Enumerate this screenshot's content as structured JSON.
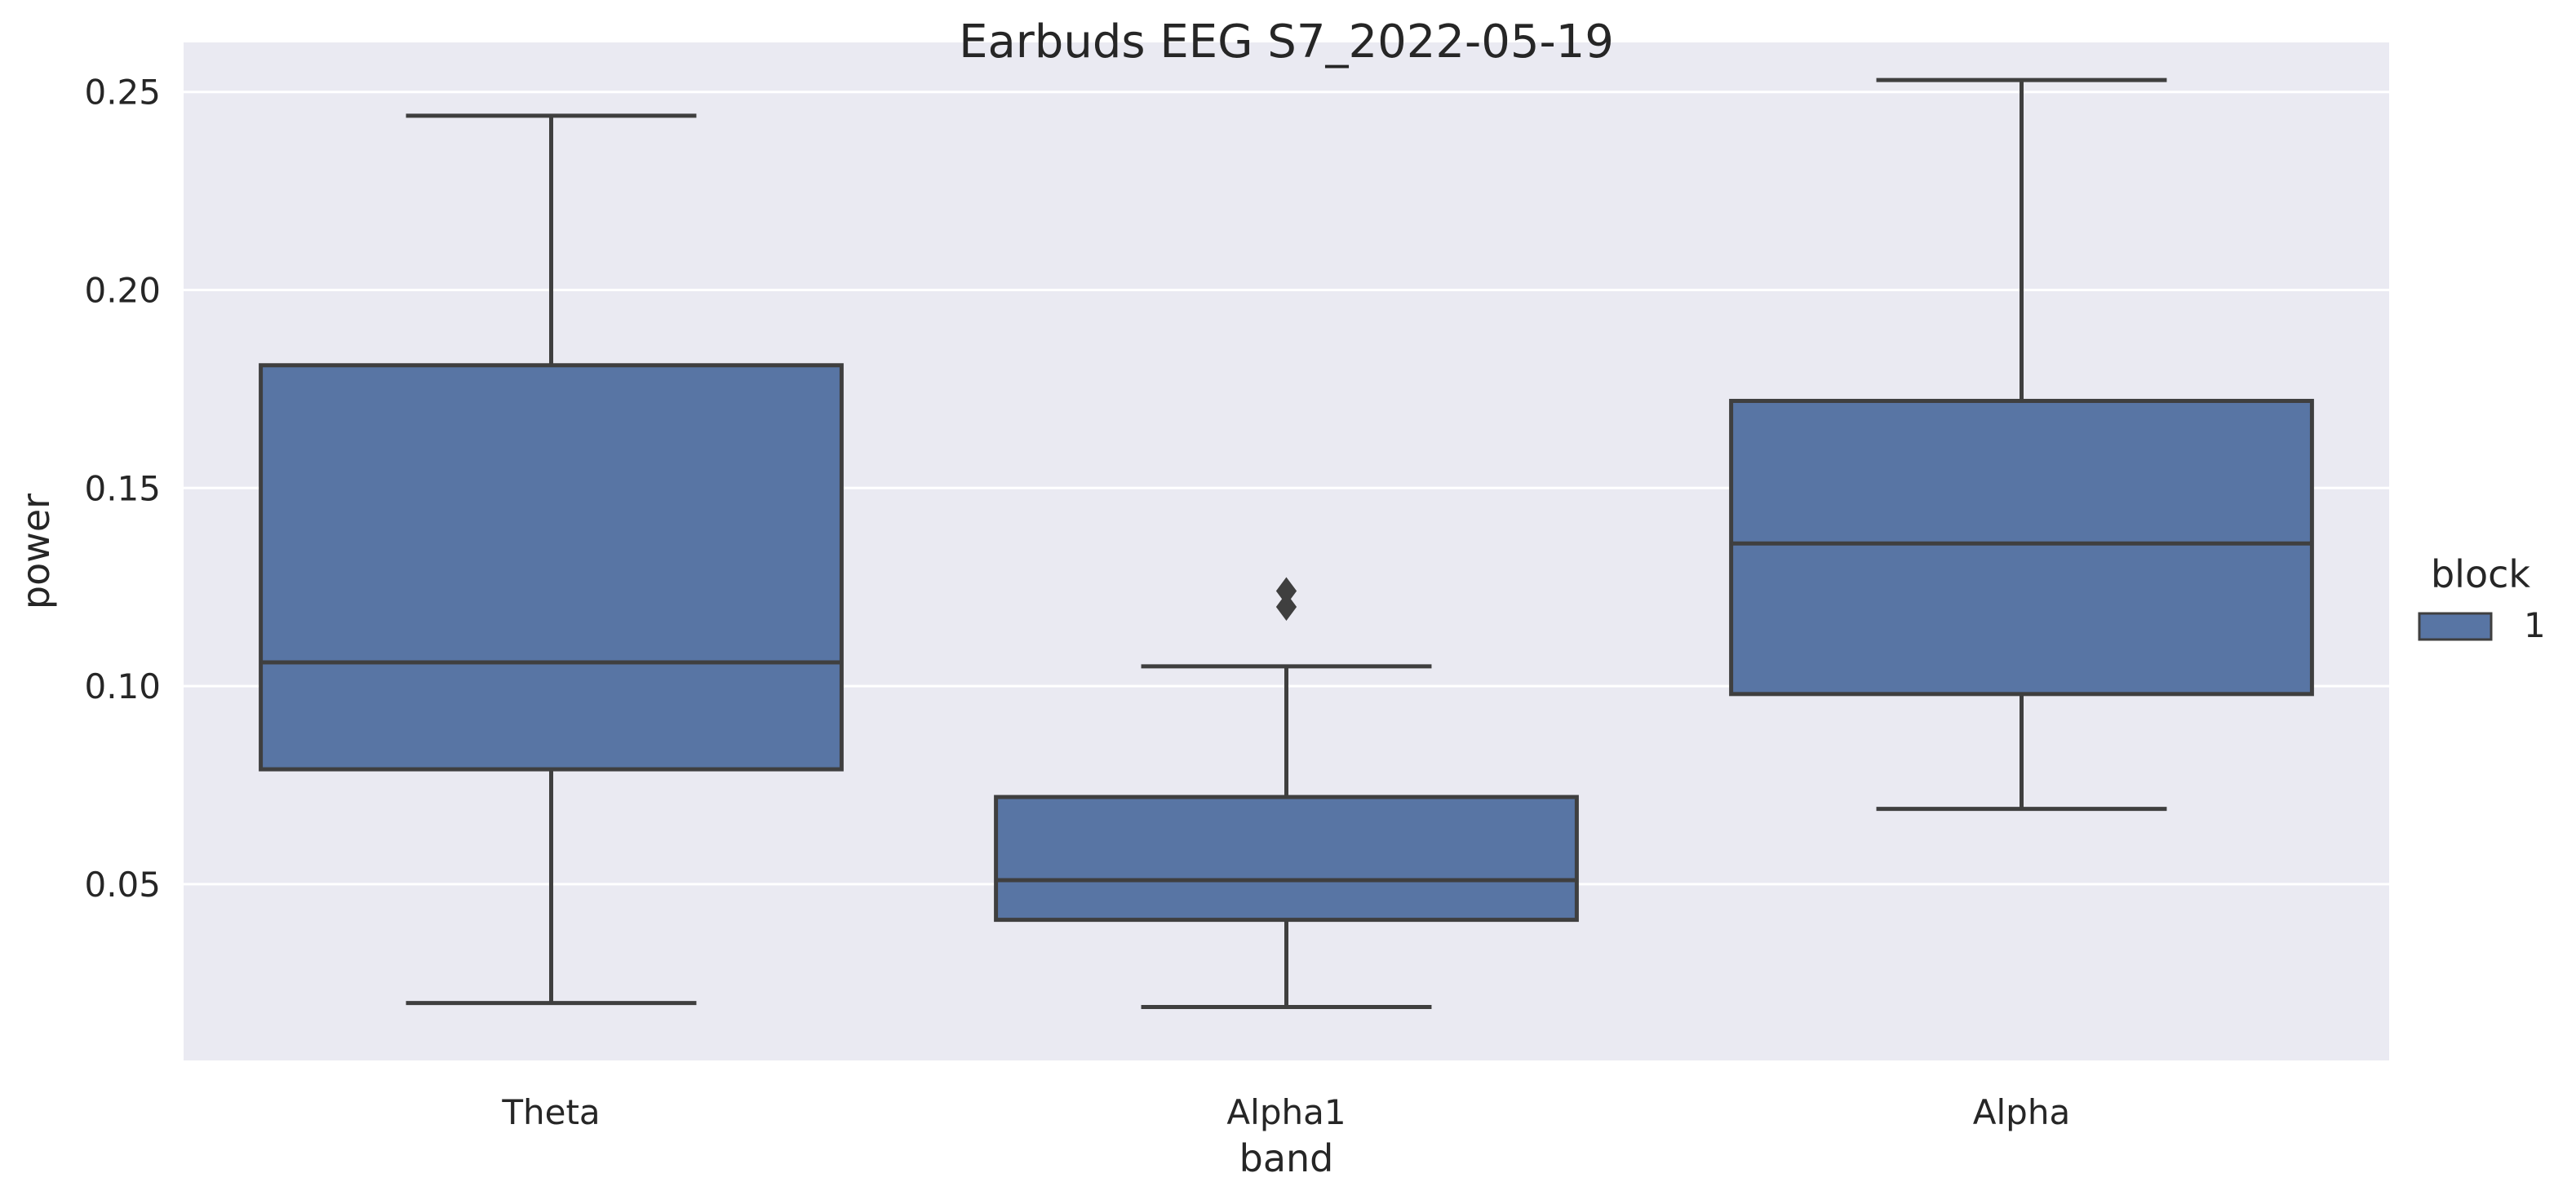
{
  "chart_data": {
    "type": "box",
    "title": "Earbuds EEG S7_2022-05-19",
    "xlabel": "band",
    "ylabel": "power",
    "ylim": [
      0.0055,
      0.2625
    ],
    "yticks": [
      0.05,
      0.1,
      0.15,
      0.2,
      0.25
    ],
    "ytick_labels": [
      "0.05",
      "0.10",
      "0.15",
      "0.20",
      "0.25"
    ],
    "grid": true,
    "legend": {
      "title": "block",
      "placement": "right",
      "entries": [
        {
          "label": "1",
          "color": "#5875a4"
        }
      ]
    },
    "categories": [
      "Theta",
      "Alpha1",
      "Alpha"
    ],
    "series": [
      {
        "name": "1",
        "boxes": [
          {
            "category": "Theta",
            "whislo": 0.02,
            "q1": 0.079,
            "med": 0.106,
            "q3": 0.181,
            "whishi": 0.244,
            "fliers": []
          },
          {
            "category": "Alpha1",
            "whislo": 0.019,
            "q1": 0.041,
            "med": 0.051,
            "q3": 0.072,
            "whishi": 0.105,
            "fliers": [
              0.12,
              0.124
            ]
          },
          {
            "category": "Alpha",
            "whislo": 0.069,
            "q1": 0.098,
            "med": 0.136,
            "q3": 0.172,
            "whishi": 0.253,
            "fliers": []
          }
        ]
      }
    ],
    "colors": {
      "plot_background": "#eaeaf2",
      "grid": "#ffffff",
      "box_fill": "#5875a4",
      "box_edge": "#3f3f3f",
      "text": "#262626"
    }
  }
}
